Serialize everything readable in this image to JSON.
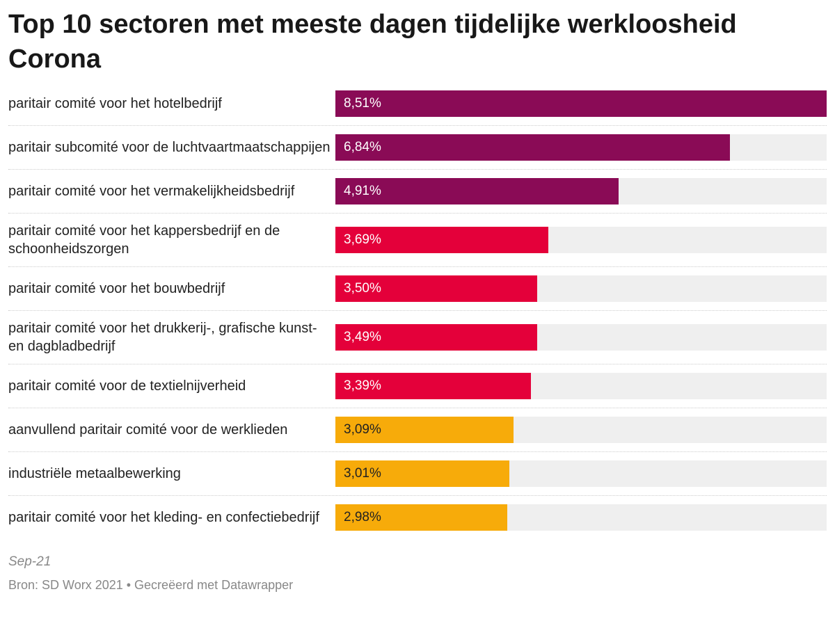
{
  "chart_data": {
    "type": "bar",
    "title": "Top 10 sectoren met meeste dagen tijdelijke werkloosheid Corona",
    "categories": [
      "paritair comité voor het hotelbedrijf",
      "paritair subcomité voor de luchtvaartmaatschappijen",
      "paritair comité voor het vermakelijkheidsbedrijf",
      "paritair comité voor het kappersbedrijf en de schoonheidszorgen",
      "paritair comité voor het bouwbedrijf",
      "paritair comité voor het drukkerij-, grafische kunst- en dagbladbedrijf",
      "paritair comité voor de textielnijverheid",
      "aanvullend paritair comité voor de werklieden",
      "industriële metaalbewerking",
      "paritair comité voor het kleding- en confectiebedrijf"
    ],
    "values": [
      8.51,
      6.84,
      4.91,
      3.69,
      3.5,
      3.49,
      3.39,
      3.09,
      3.01,
      2.98
    ],
    "value_labels": [
      "8,51%",
      "6,84%",
      "4,91%",
      "3,69%",
      "3,50%",
      "3,49%",
      "3,39%",
      "3,09%",
      "3,01%",
      "2,98%"
    ],
    "colors": [
      "#8a0b56",
      "#8a0b56",
      "#8a0b56",
      "#e4003a",
      "#e4003a",
      "#e4003a",
      "#e4003a",
      "#f7ab0a",
      "#f7ab0a",
      "#f7ab0a"
    ],
    "xlim": [
      0,
      8.51
    ],
    "notes": "Sep-21",
    "source": "Bron: SD Worx 2021 • Gecreëerd met Datawrapper"
  }
}
